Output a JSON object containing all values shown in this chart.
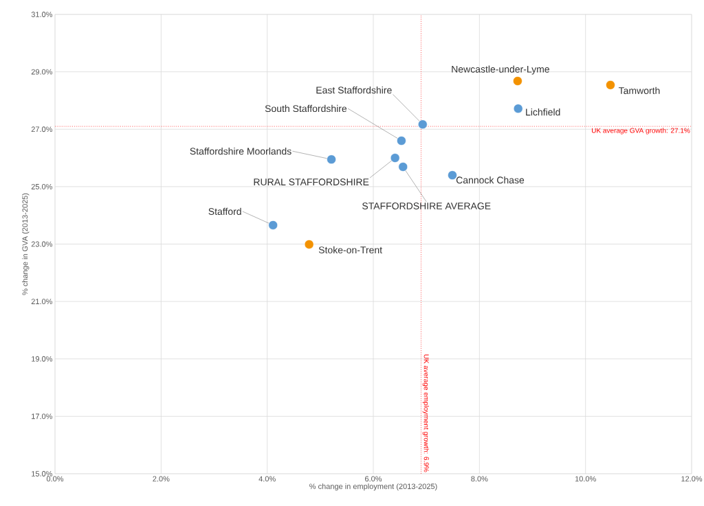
{
  "chart_data": {
    "type": "scatter",
    "xlabel": "% change in employment (2013-2025)",
    "ylabel": "% change in GVA (2013-2025)",
    "series": [
      {
        "color": "#5b9bd5",
        "x": [
          6.93,
          6.53,
          5.21,
          6.41,
          6.56,
          7.49,
          4.11,
          8.73
        ],
        "values": [
          27.17,
          26.6,
          25.95,
          26.0,
          25.69,
          25.4,
          23.66,
          27.72
        ]
      },
      {
        "color": "#f39200",
        "x": [
          8.72,
          10.47,
          4.79
        ],
        "values": [
          28.68,
          28.54,
          22.99
        ]
      }
    ],
    "annotations": [
      {
        "text": "East Staffordshire",
        "x": 6.93,
        "y": 27.17
      },
      {
        "text": "South Staffordshire",
        "x": 6.53,
        "y": 26.6
      },
      {
        "text": "Staffordshire Moorlands",
        "x": 5.21,
        "y": 25.95
      },
      {
        "text": "RURAL STAFFORDSHIRE",
        "x": 6.41,
        "y": 26.0
      },
      {
        "text": "STAFFORDSHIRE AVERAGE",
        "x": 6.56,
        "y": 25.69
      },
      {
        "text": "Cannock Chase",
        "x": 7.49,
        "y": 25.4
      },
      {
        "text": "Stafford",
        "x": 4.11,
        "y": 23.66
      },
      {
        "text": "Lichfield",
        "x": 8.73,
        "y": 27.72
      },
      {
        "text": "Newcastle-under-Lyme",
        "x": 8.72,
        "y": 28.68
      },
      {
        "text": "Tamworth",
        "x": 10.47,
        "y": 28.54
      },
      {
        "text": "Stoke-on-Trent",
        "x": 4.79,
        "y": 22.99
      }
    ],
    "ref_lines": [
      {
        "axis": "x",
        "value": 6.9,
        "label": "UK average employment growth: 6.9%",
        "color": "#ff0000",
        "line_style": "dotted"
      },
      {
        "axis": "y",
        "value": 27.1,
        "label": "UK average GVA growth: 27.1%",
        "color": "#ff0000",
        "line_style": "dotted"
      }
    ],
    "xlim": [
      0,
      12
    ],
    "ylim": [
      15,
      31
    ],
    "xticks": [
      {
        "value": 0,
        "label": "0.0%"
      },
      {
        "value": 2,
        "label": "2.0%"
      },
      {
        "value": 4,
        "label": "4.0%"
      },
      {
        "value": 6,
        "label": "6.0%"
      },
      {
        "value": 8,
        "label": "8.0%"
      },
      {
        "value": 10,
        "label": "10.0%"
      },
      {
        "value": 12,
        "label": "12.0%"
      }
    ],
    "yticks": [
      {
        "value": 15,
        "label": "15.0%"
      },
      {
        "value": 17,
        "label": "17.0%"
      },
      {
        "value": 19,
        "label": "19.0%"
      },
      {
        "value": 21,
        "label": "21.0%"
      },
      {
        "value": 23,
        "label": "23.0%"
      },
      {
        "value": 25,
        "label": "25.0%"
      },
      {
        "value": 27,
        "label": "27.0%"
      },
      {
        "value": 29,
        "label": "29.0%"
      },
      {
        "value": 31,
        "label": "31.0%"
      }
    ],
    "grid": true,
    "marker": "circle"
  }
}
